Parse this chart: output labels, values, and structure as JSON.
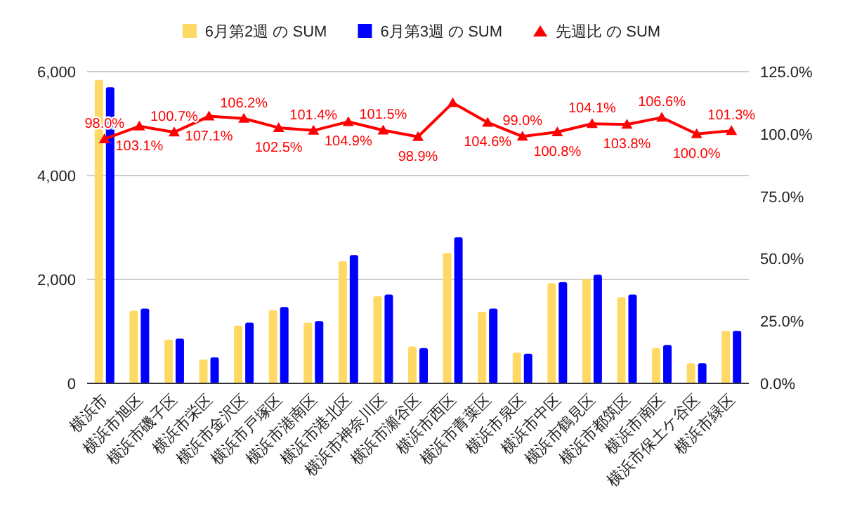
{
  "chart_data": {
    "type": "bar",
    "categories": [
      "横浜市",
      "横浜市旭区",
      "横浜市磯子区",
      "横浜市栄区",
      "横浜市金沢区",
      "横浜市戸塚区",
      "横浜市港南区",
      "横浜市港北区",
      "横浜市神奈川区",
      "横浜市瀬谷区",
      "横浜市西区",
      "横浜市青葉区",
      "横浜市泉区",
      "横浜市中区",
      "横浜市鶴見区",
      "横浜市都筑区",
      "横浜市南区",
      "横浜市保土ケ谷区",
      "横浜市緑区"
    ],
    "series": [
      {
        "name": "6月第2週 の SUM",
        "color": "#ffd966",
        "values": [
          5840,
          1400,
          840,
          460,
          1110,
          1410,
          1170,
          2350,
          1680,
          710,
          2510,
          1380,
          590,
          1930,
          2010,
          1660,
          680,
          390,
          1010
        ]
      },
      {
        "name": "6月第3週 の SUM",
        "color": "#0000ff",
        "values": [
          5700,
          1440,
          860,
          500,
          1170,
          1470,
          1200,
          2470,
          1710,
          680,
          2810,
          1440,
          570,
          1950,
          2090,
          1710,
          740,
          390,
          1010
        ]
      },
      {
        "name": "先週比 の SUM",
        "color": "#ff0000",
        "type": "line",
        "axis": "y2",
        "marker": "triangle",
        "values": [
          98.0,
          103.1,
          100.7,
          107.1,
          106.2,
          102.5,
          101.4,
          104.9,
          101.5,
          98.9,
          112.5,
          104.6,
          99.0,
          100.8,
          104.1,
          103.8,
          106.6,
          100.0,
          101.3
        ],
        "value_labels": [
          "98.0%",
          "103.1%",
          "100.7%",
          "107.1%",
          "106.2%",
          "102.5%",
          "101.4%",
          "104.9%",
          "101.5%",
          "98.9%",
          null,
          "104.6%",
          "99.0%",
          "100.8%",
          "104.1%",
          "103.8%",
          "106.6%",
          "100.0%",
          "101.3%"
        ]
      }
    ],
    "ylim": [
      0,
      6000
    ],
    "yticks": [
      {
        "value": 0,
        "label": "0"
      },
      {
        "value": 2000,
        "label": "2,000"
      },
      {
        "value": 4000,
        "label": "4,000"
      },
      {
        "value": 6000,
        "label": "6,000"
      }
    ],
    "y2lim": [
      0,
      125
    ],
    "y2ticks": [
      {
        "value": 0,
        "label": "0.0%"
      },
      {
        "value": 25,
        "label": "25.0%"
      },
      {
        "value": 50,
        "label": "50.0%"
      },
      {
        "value": 75,
        "label": "75.0%"
      },
      {
        "value": 100,
        "label": "100.0%"
      },
      {
        "value": 125,
        "label": "125.0%"
      }
    ],
    "grid": "y",
    "legend": "top"
  }
}
